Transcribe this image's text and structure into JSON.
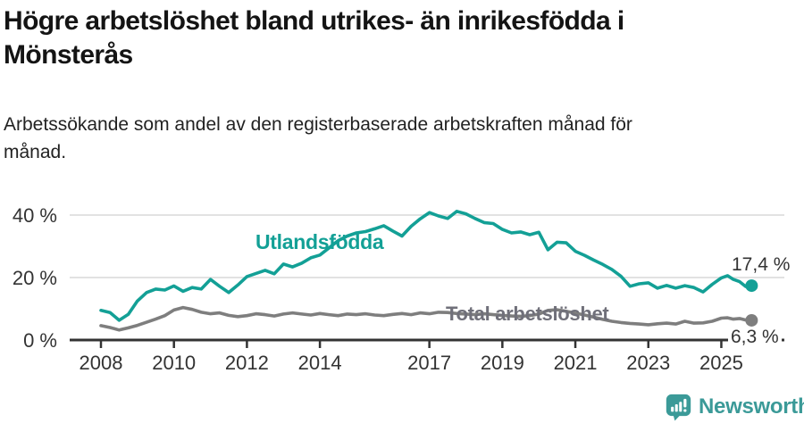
{
  "title": {
    "line1": "Högre arbetslöshet bland utrikes- än inrikesfödda i",
    "line2": "Mönsterås"
  },
  "subtitle": {
    "line1": "Arbetssökande som andel av den registerbaserade arbetskraften månad för",
    "line2": "månad."
  },
  "colors": {
    "axis": "#333333",
    "gridline": "#e2e2e2",
    "tick_label": "#333333",
    "teal_accent": "#13a096",
    "gray_accent": "#7e7e7e"
  },
  "chart_data": {
    "type": "line",
    "title": "",
    "xlabel": "",
    "ylabel": "",
    "x_unit": "year (monthly data)",
    "ylim": [
      0,
      44
    ],
    "grid": "horizontal",
    "legend": "inline-labels",
    "y_ticks": [
      {
        "value": 0,
        "label": "0 %"
      },
      {
        "value": 20,
        "label": "20 %"
      },
      {
        "value": 40,
        "label": "40 %"
      }
    ],
    "x_ticks": [
      {
        "value": 2008,
        "label": "2008"
      },
      {
        "value": 2010,
        "label": "2010"
      },
      {
        "value": 2012,
        "label": "2012"
      },
      {
        "value": 2014,
        "label": "2014"
      },
      {
        "value": 2017,
        "label": "2017"
      },
      {
        "value": 2019,
        "label": "2019"
      },
      {
        "value": 2021,
        "label": "2021"
      },
      {
        "value": 2023,
        "label": "2023"
      },
      {
        "value": 2025,
        "label": "2025"
      }
    ],
    "x": [
      2008.0,
      2008.25,
      2008.5,
      2008.75,
      2009.0,
      2009.25,
      2009.5,
      2009.75,
      2010.0,
      2010.25,
      2010.5,
      2010.75,
      2011.0,
      2011.25,
      2011.5,
      2011.75,
      2012.0,
      2012.25,
      2012.5,
      2012.75,
      2013.0,
      2013.25,
      2013.5,
      2013.75,
      2014.0,
      2014.25,
      2014.5,
      2014.75,
      2015.0,
      2015.25,
      2015.5,
      2015.75,
      2016.0,
      2016.25,
      2016.5,
      2016.75,
      2017.0,
      2017.25,
      2017.5,
      2017.75,
      2018.0,
      2018.25,
      2018.5,
      2018.75,
      2019.0,
      2019.25,
      2019.5,
      2019.75,
      2020.0,
      2020.25,
      2020.5,
      2020.75,
      2021.0,
      2021.25,
      2021.5,
      2021.75,
      2022.0,
      2022.25,
      2022.5,
      2022.75,
      2023.0,
      2023.25,
      2023.5,
      2023.75,
      2024.0,
      2024.25,
      2024.5,
      2024.75,
      2025.0,
      2025.17,
      2025.33,
      2025.5,
      2025.67,
      2025.83
    ],
    "series": [
      {
        "name": "Utlandsfödda",
        "color": "#13a096",
        "label_color": "#13a096",
        "end_label": "17,4 %",
        "end_value": 17.4,
        "values": [
          9.5,
          8.8,
          6.3,
          8.2,
          12.5,
          15.2,
          16.3,
          16.0,
          17.3,
          15.6,
          16.8,
          16.3,
          19.4,
          17.2,
          15.2,
          17.6,
          20.3,
          21.3,
          22.3,
          21.2,
          24.3,
          23.4,
          24.6,
          26.3,
          27.2,
          29.5,
          31.8,
          33.3,
          34.3,
          34.7,
          35.6,
          36.6,
          34.9,
          33.3,
          36.4,
          38.8,
          40.8,
          39.7,
          38.9,
          41.2,
          40.4,
          38.9,
          37.6,
          37.3,
          35.4,
          34.3,
          34.6,
          33.7,
          34.5,
          28.9,
          31.3,
          31.1,
          28.4,
          27.1,
          25.6,
          24.2,
          22.6,
          20.4,
          17.2,
          18.0,
          18.3,
          16.6,
          17.5,
          16.6,
          17.4,
          16.8,
          15.4,
          17.8,
          19.9,
          20.6,
          19.4,
          18.7,
          17.1,
          17.4
        ]
      },
      {
        "name": "Total arbetslöshet",
        "color": "#7e7e7e",
        "label_color": "#70707a",
        "end_label": "6,3 %",
        "end_value": 6.3,
        "values": [
          4.6,
          4.0,
          3.2,
          3.9,
          4.7,
          5.7,
          6.7,
          7.8,
          9.6,
          10.4,
          9.8,
          8.9,
          8.4,
          8.7,
          7.9,
          7.5,
          7.8,
          8.4,
          8.1,
          7.7,
          8.3,
          8.7,
          8.3,
          8.0,
          8.5,
          8.1,
          7.8,
          8.3,
          8.1,
          8.4,
          8.0,
          7.8,
          8.2,
          8.5,
          8.1,
          8.7,
          8.4,
          8.9,
          8.8,
          8.5,
          8.3,
          8.1,
          8.4,
          8.1,
          7.9,
          7.7,
          7.6,
          7.8,
          8.3,
          9.5,
          9.7,
          9.2,
          8.6,
          8.0,
          7.3,
          6.6,
          6.0,
          5.6,
          5.3,
          5.1,
          4.9,
          5.2,
          5.4,
          5.1,
          6.0,
          5.4,
          5.5,
          6.0,
          7.0,
          7.1,
          6.7,
          6.9,
          6.4,
          6.3
        ]
      }
    ]
  },
  "footer": {
    "brand": "Newsworthy",
    "brand_color": "#3b9a98",
    "logo_icon": "newsworthy-chart-bubble-icon"
  }
}
